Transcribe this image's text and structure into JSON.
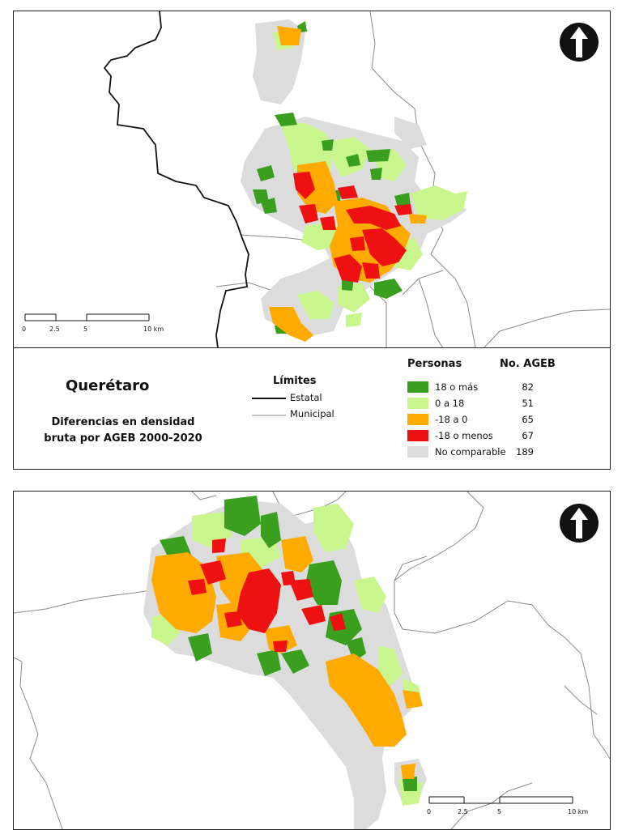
{
  "legend": {
    "title": "Querétaro",
    "subtitle_line1": "Diferencias en densidad",
    "subtitle_line2": "bruta por AGEB 2000-2020",
    "limits": {
      "title": "Límites",
      "estatal": "Estatal",
      "municipal": "Municipal"
    },
    "personas_header": "Personas",
    "ageb_header": "No. AGEB",
    "categories": [
      {
        "label": "18 o más",
        "count": "82",
        "color": "#3a9e1f"
      },
      {
        "label": "0 a 18",
        "count": "51",
        "color": "#c8f58c"
      },
      {
        "label": "-18 a 0",
        "count": "65",
        "color": "#ffaa00"
      },
      {
        "label": "-18 o menos",
        "count": "67",
        "color": "#ee1111"
      },
      {
        "label": "No comparable",
        "count": "189",
        "color": "#dcdcdc"
      }
    ]
  },
  "scalebar_top": {
    "t0": "0",
    "t1": "2.5",
    "t2": "5",
    "t3": "10 km"
  },
  "scalebar_bottom": {
    "t0": "0",
    "t1": "2.5",
    "t2": "5",
    "t3": "10 km"
  },
  "colors": {
    "green": "#3a9e1f",
    "lightgreen": "#c8f58c",
    "orange": "#ffaa00",
    "red": "#ee1111",
    "gray": "#dcdcdc",
    "boundary": "#888888"
  },
  "icons": {
    "north": "north-arrow-icon"
  }
}
